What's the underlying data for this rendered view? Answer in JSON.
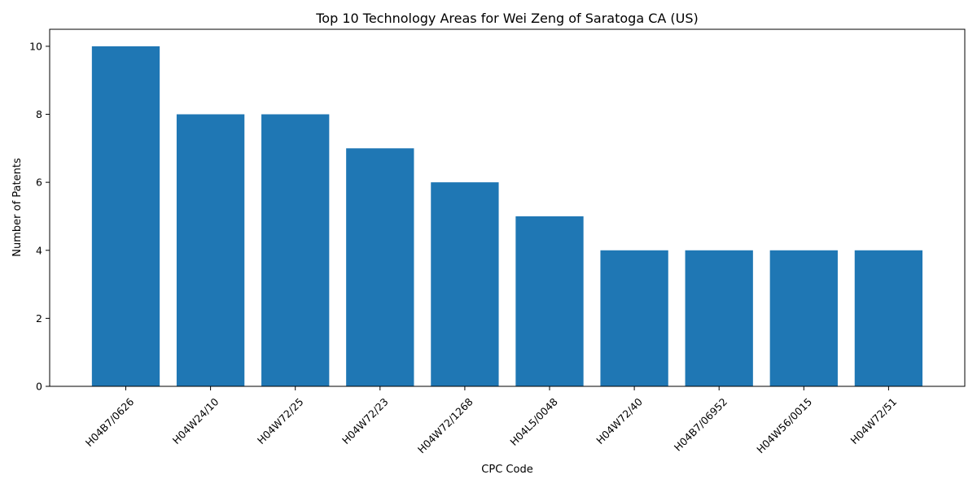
{
  "chart_data": {
    "type": "bar",
    "title": "Top 10 Technology Areas for Wei Zeng of Saratoga CA (US)",
    "xlabel": "CPC Code",
    "ylabel": "Number of Patents",
    "categories": [
      "H04B7/0626",
      "H04W24/10",
      "H04W72/25",
      "H04W72/23",
      "H04W72/1268",
      "H04L5/0048",
      "H04W72/40",
      "H04B7/06952",
      "H04W56/0015",
      "H04W72/51"
    ],
    "values": [
      10,
      8,
      8,
      7,
      6,
      5,
      4,
      4,
      4,
      4
    ],
    "ylim": [
      0,
      10.5
    ],
    "yticks": [
      0,
      2,
      4,
      6,
      8,
      10
    ],
    "bar_color": "#1f77b4",
    "grid": false,
    "legend": "none"
  }
}
